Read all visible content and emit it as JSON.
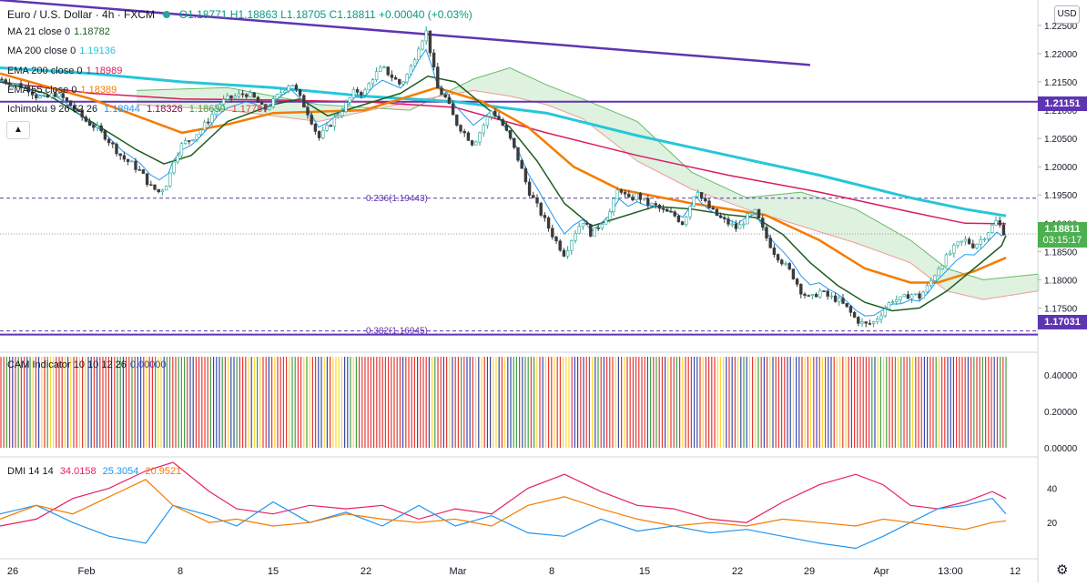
{
  "header": {
    "symbol_title": "Euro / U.S. Dollar · 4h · FXCM",
    "ohlc": "O1.18771  H1.18863  L1.18705  C1.18811  +0.00040 (+0.03%)"
  },
  "studies": [
    {
      "label": "MA 21 close 0",
      "value": "1.18782",
      "color": "#1b5e20"
    },
    {
      "label": "MA 200 close 0",
      "value": "1.19136",
      "color": "#26c6da"
    },
    {
      "label": "EMA 200 close 0",
      "value": "1.18989",
      "color": "#d81b60"
    },
    {
      "label": "EMA 55 close 0",
      "value": "1.18389",
      "color": "#f57c00"
    }
  ],
  "ichimoku": {
    "label": "Ichimoku 9 26 52 26",
    "values": [
      "1.18944",
      "1.18326",
      "1.18639",
      "1.17787"
    ]
  },
  "cam": {
    "label": "CAM Indicator 10 10 12 26",
    "value": "0.00000"
  },
  "dmi": {
    "label": "DMI 14 14",
    "values": [
      "34.0158",
      "25.3054",
      "20.9521"
    ],
    "colors": [
      "#e91e63",
      "#2196f3",
      "#f57c00"
    ]
  },
  "price_axis": {
    "currency": "USD",
    "ticks": [
      "1.22500",
      "1.22000",
      "1.21500",
      "1.21000",
      "1.20500",
      "1.20000",
      "1.19500",
      "1.19000",
      "1.18500",
      "1.18000",
      "1.17500"
    ],
    "last_price": "1.18811",
    "countdown": "03:15:17",
    "level_upper": "1.21151",
    "level_lower": "1.17031"
  },
  "fib": {
    "upper": "0.236(1.19443)",
    "lower": "0.382(1.16945)"
  },
  "cam_axis": [
    "0.40000",
    "0.20000",
    "0.00000"
  ],
  "dmi_axis": [
    "40",
    "20"
  ],
  "time_axis": [
    "26",
    "Feb",
    "8",
    "15",
    "22",
    "Mar",
    "8",
    "15",
    "22",
    "29",
    "Apr",
    "13:00",
    "12"
  ],
  "chart_data": {
    "type": "line",
    "title": "Euro / U.S. Dollar · 4h · FXCM",
    "price_ylim": [
      1.1675,
      1.2295
    ],
    "price_path": [
      [
        0,
        1.2155
      ],
      [
        10,
        1.215
      ],
      [
        20,
        1.2145
      ],
      [
        30,
        1.214
      ],
      [
        40,
        1.2125
      ],
      [
        50,
        1.212
      ],
      [
        60,
        1.213
      ],
      [
        70,
        1.212
      ],
      [
        80,
        1.2105
      ],
      [
        95,
        1.208
      ],
      [
        105,
        1.207
      ],
      [
        115,
        1.2055
      ],
      [
        125,
        1.2035
      ],
      [
        135,
        1.2015
      ],
      [
        145,
        1.2005
      ],
      [
        155,
        1.199
      ],
      [
        165,
        1.1965
      ],
      [
        175,
        1.1955
      ],
      [
        185,
        1.1975
      ],
      [
        190,
        1.201
      ],
      [
        200,
        1.204
      ],
      [
        210,
        1.205
      ],
      [
        220,
        1.2065
      ],
      [
        230,
        1.2085
      ],
      [
        240,
        1.211
      ],
      [
        250,
        1.212
      ],
      [
        260,
        1.2125
      ],
      [
        270,
        1.213
      ],
      [
        280,
        1.212
      ],
      [
        290,
        1.21
      ],
      [
        300,
        1.2115
      ],
      [
        310,
        1.2135
      ],
      [
        320,
        1.215
      ],
      [
        330,
        1.212
      ],
      [
        340,
        1.209
      ],
      [
        350,
        1.205
      ],
      [
        360,
        1.207
      ],
      [
        370,
        1.209
      ],
      [
        380,
        1.211
      ],
      [
        390,
        1.2135
      ],
      [
        400,
        1.213
      ],
      [
        410,
        1.216
      ],
      [
        420,
        1.2175
      ],
      [
        430,
        1.216
      ],
      [
        440,
        1.2145
      ],
      [
        450,
        1.217
      ],
      [
        460,
        1.2215
      ],
      [
        468,
        1.224
      ],
      [
        475,
        1.2185
      ],
      [
        480,
        1.214
      ],
      [
        490,
        1.212
      ],
      [
        500,
        1.208
      ],
      [
        510,
        1.206
      ],
      [
        520,
        1.204
      ],
      [
        530,
        1.207
      ],
      [
        540,
        1.21
      ],
      [
        550,
        1.208
      ],
      [
        560,
        1.205
      ],
      [
        570,
        1.201
      ],
      [
        580,
        1.196
      ],
      [
        590,
        1.193
      ],
      [
        600,
        1.19
      ],
      [
        610,
        1.187
      ],
      [
        620,
        1.1845
      ],
      [
        630,
        1.188
      ],
      [
        640,
        1.1905
      ],
      [
        650,
        1.188
      ],
      [
        660,
        1.19
      ],
      [
        670,
        1.192
      ],
      [
        680,
        1.1965
      ],
      [
        690,
        1.194
      ],
      [
        700,
        1.195
      ],
      [
        710,
        1.1935
      ],
      [
        720,
        1.193
      ],
      [
        730,
        1.192
      ],
      [
        740,
        1.1915
      ],
      [
        750,
        1.19
      ],
      [
        760,
        1.194
      ],
      [
        765,
        1.1965
      ],
      [
        770,
        1.1945
      ],
      [
        780,
        1.1925
      ],
      [
        790,
        1.191
      ],
      [
        800,
        1.19
      ],
      [
        810,
        1.189
      ],
      [
        820,
        1.191
      ],
      [
        830,
        1.192
      ],
      [
        840,
        1.188
      ],
      [
        850,
        1.185
      ],
      [
        860,
        1.183
      ],
      [
        870,
        1.181
      ],
      [
        880,
        1.178
      ],
      [
        890,
        1.1765
      ],
      [
        900,
        1.178
      ],
      [
        910,
        1.177
      ],
      [
        920,
        1.1765
      ],
      [
        930,
        1.175
      ],
      [
        940,
        1.173
      ],
      [
        950,
        1.172
      ],
      [
        960,
        1.1725
      ],
      [
        970,
        1.1745
      ],
      [
        980,
        1.1765
      ],
      [
        990,
        1.1765
      ],
      [
        1000,
        1.1775
      ],
      [
        1010,
        1.177
      ],
      [
        1020,
        1.179
      ],
      [
        1030,
        1.182
      ],
      [
        1040,
        1.184
      ],
      [
        1050,
        1.186
      ],
      [
        1060,
        1.187
      ],
      [
        1070,
        1.186
      ],
      [
        1080,
        1.1875
      ],
      [
        1090,
        1.1895
      ],
      [
        1095,
        1.1905
      ],
      [
        1100,
        1.189
      ],
      [
        1105,
        1.1881
      ]
    ],
    "ma21": [
      [
        0,
        1.215
      ],
      [
        50,
        1.213
      ],
      [
        100,
        1.208
      ],
      [
        150,
        1.203
      ],
      [
        180,
        1.2005
      ],
      [
        210,
        1.202
      ],
      [
        250,
        1.208
      ],
      [
        300,
        1.211
      ],
      [
        330,
        1.212
      ],
      [
        360,
        1.209
      ],
      [
        400,
        1.211
      ],
      [
        440,
        1.213
      ],
      [
        470,
        1.216
      ],
      [
        500,
        1.215
      ],
      [
        530,
        1.211
      ],
      [
        560,
        1.207
      ],
      [
        590,
        1.201
      ],
      [
        620,
        1.1935
      ],
      [
        650,
        1.1895
      ],
      [
        680,
        1.191
      ],
      [
        720,
        1.193
      ],
      [
        760,
        1.1925
      ],
      [
        800,
        1.1915
      ],
      [
        830,
        1.191
      ],
      [
        860,
        1.188
      ],
      [
        890,
        1.183
      ],
      [
        920,
        1.179
      ],
      [
        950,
        1.176
      ],
      [
        980,
        1.1745
      ],
      [
        1010,
        1.175
      ],
      [
        1040,
        1.178
      ],
      [
        1070,
        1.182
      ],
      [
        1100,
        1.186
      ],
      [
        1105,
        1.1878
      ]
    ],
    "ma200": [
      [
        0,
        1.2175
      ],
      [
        100,
        1.2165
      ],
      [
        200,
        1.215
      ],
      [
        300,
        1.214
      ],
      [
        400,
        1.2125
      ],
      [
        500,
        1.2115
      ],
      [
        600,
        1.2095
      ],
      [
        700,
        1.2055
      ],
      [
        800,
        1.202
      ],
      [
        900,
        1.1985
      ],
      [
        1000,
        1.1945
      ],
      [
        1060,
        1.1925
      ],
      [
        1105,
        1.1913
      ]
    ],
    "ema200": [
      [
        0,
        1.215
      ],
      [
        100,
        1.213
      ],
      [
        200,
        1.212
      ],
      [
        300,
        1.2118
      ],
      [
        400,
        1.2115
      ],
      [
        500,
        1.2105
      ],
      [
        600,
        1.206
      ],
      [
        700,
        1.202
      ],
      [
        800,
        1.1985
      ],
      [
        900,
        1.1955
      ],
      [
        1000,
        1.192
      ],
      [
        1060,
        1.19
      ],
      [
        1105,
        1.1899
      ]
    ],
    "ema55": [
      [
        0,
        1.2165
      ],
      [
        100,
        1.212
      ],
      [
        200,
        1.206
      ],
      [
        250,
        1.2075
      ],
      [
        300,
        1.2095
      ],
      [
        400,
        1.21
      ],
      [
        480,
        1.214
      ],
      [
        530,
        1.2115
      ],
      [
        580,
        1.207
      ],
      [
        630,
        1.2
      ],
      [
        680,
        1.196
      ],
      [
        760,
        1.1935
      ],
      [
        840,
        1.1915
      ],
      [
        900,
        1.187
      ],
      [
        950,
        1.182
      ],
      [
        1000,
        1.1795
      ],
      [
        1030,
        1.1795
      ],
      [
        1070,
        1.1815
      ],
      [
        1105,
        1.1839
      ]
    ],
    "cloud_a": [
      [
        150,
        1.2135
      ],
      [
        250,
        1.214
      ],
      [
        350,
        1.211
      ],
      [
        450,
        1.21
      ],
      [
        520,
        1.2155
      ],
      [
        560,
        1.2175
      ],
      [
        600,
        1.2145
      ],
      [
        640,
        1.212
      ],
      [
        700,
        1.208
      ],
      [
        760,
        1.199
      ],
      [
        820,
        1.1945
      ],
      [
        880,
        1.1955
      ],
      [
        940,
        1.1925
      ],
      [
        1000,
        1.187
      ],
      [
        1040,
        1.182
      ],
      [
        1080,
        1.18
      ],
      [
        1140,
        1.181
      ]
    ],
    "cloud_b": [
      [
        150,
        1.211
      ],
      [
        250,
        1.21
      ],
      [
        350,
        1.208
      ],
      [
        450,
        1.2115
      ],
      [
        520,
        1.2135
      ],
      [
        560,
        1.2125
      ],
      [
        600,
        1.211
      ],
      [
        640,
        1.2085
      ],
      [
        700,
        1.201
      ],
      [
        760,
        1.196
      ],
      [
        820,
        1.1925
      ],
      [
        880,
        1.1895
      ],
      [
        940,
        1.1865
      ],
      [
        1000,
        1.183
      ],
      [
        1040,
        1.178
      ],
      [
        1080,
        1.1765
      ],
      [
        1140,
        1.178
      ]
    ],
    "trendline": [
      [
        0,
        1.2295
      ],
      [
        890,
        1.218
      ]
    ],
    "cam_ylim": [
      0,
      0.5
    ],
    "cam_palette": [
      "#e53935",
      "#3949ab",
      "#fdd835",
      "#43a047"
    ],
    "dmi_ylim": [
      0,
      55
    ],
    "dmi_plus": [
      [
        0,
        18
      ],
      [
        40,
        22
      ],
      [
        80,
        34
      ],
      [
        120,
        40
      ],
      [
        160,
        50
      ],
      [
        190,
        55
      ],
      [
        230,
        38
      ],
      [
        260,
        28
      ],
      [
        300,
        25
      ],
      [
        340,
        30
      ],
      [
        380,
        28
      ],
      [
        420,
        30
      ],
      [
        460,
        22
      ],
      [
        500,
        28
      ],
      [
        540,
        25
      ],
      [
        580,
        40
      ],
      [
        620,
        48
      ],
      [
        660,
        38
      ],
      [
        700,
        30
      ],
      [
        740,
        28
      ],
      [
        780,
        22
      ],
      [
        820,
        20
      ],
      [
        860,
        32
      ],
      [
        900,
        42
      ],
      [
        940,
        48
      ],
      [
        970,
        42
      ],
      [
        1000,
        30
      ],
      [
        1030,
        28
      ],
      [
        1060,
        32
      ],
      [
        1090,
        38
      ],
      [
        1105,
        34
      ]
    ],
    "dmi_minus": [
      [
        0,
        25
      ],
      [
        40,
        30
      ],
      [
        80,
        20
      ],
      [
        120,
        12
      ],
      [
        160,
        8
      ],
      [
        190,
        30
      ],
      [
        230,
        24
      ],
      [
        260,
        18
      ],
      [
        300,
        32
      ],
      [
        340,
        20
      ],
      [
        380,
        26
      ],
      [
        420,
        18
      ],
      [
        460,
        30
      ],
      [
        500,
        18
      ],
      [
        540,
        24
      ],
      [
        580,
        14
      ],
      [
        620,
        12
      ],
      [
        660,
        22
      ],
      [
        700,
        15
      ],
      [
        740,
        18
      ],
      [
        780,
        14
      ],
      [
        820,
        16
      ],
      [
        860,
        12
      ],
      [
        900,
        8
      ],
      [
        940,
        5
      ],
      [
        970,
        12
      ],
      [
        1000,
        20
      ],
      [
        1030,
        28
      ],
      [
        1060,
        30
      ],
      [
        1090,
        34
      ],
      [
        1105,
        25
      ]
    ],
    "adx": [
      [
        0,
        22
      ],
      [
        40,
        30
      ],
      [
        80,
        25
      ],
      [
        120,
        35
      ],
      [
        160,
        45
      ],
      [
        190,
        30
      ],
      [
        230,
        20
      ],
      [
        260,
        22
      ],
      [
        300,
        18
      ],
      [
        340,
        20
      ],
      [
        380,
        25
      ],
      [
        420,
        22
      ],
      [
        460,
        20
      ],
      [
        500,
        22
      ],
      [
        540,
        18
      ],
      [
        580,
        30
      ],
      [
        620,
        35
      ],
      [
        660,
        28
      ],
      [
        700,
        22
      ],
      [
        740,
        18
      ],
      [
        780,
        20
      ],
      [
        820,
        18
      ],
      [
        860,
        22
      ],
      [
        900,
        20
      ],
      [
        940,
        18
      ],
      [
        970,
        22
      ],
      [
        1000,
        20
      ],
      [
        1030,
        18
      ],
      [
        1060,
        16
      ],
      [
        1090,
        20
      ],
      [
        1105,
        21
      ]
    ]
  }
}
